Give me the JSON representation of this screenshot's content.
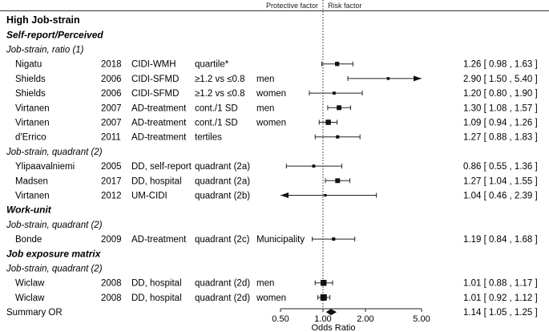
{
  "chart_data": {
    "type": "forest",
    "xlabel": "Odds Ratio",
    "xscale": "log",
    "xlim": [
      0.5,
      5.0
    ],
    "xticks": [
      {
        "value": 0.5,
        "label": "0.50"
      },
      {
        "value": 1.0,
        "label": "1.00"
      },
      {
        "value": 2.0,
        "label": "2.00"
      },
      {
        "value": 5.0,
        "label": "5.00"
      }
    ],
    "reference_line": 1.0,
    "header_left": "Protective factor",
    "header_right": "Risk factor",
    "rows": [
      {
        "kind": "title",
        "label": "High Job-strain"
      },
      {
        "kind": "section",
        "label": "Self-report/Perceived"
      },
      {
        "kind": "subsection",
        "label": "Job-strain, ratio (1)"
      },
      {
        "kind": "study",
        "author": "Nigatu",
        "year": "2018",
        "measure": "CIDI-WMH",
        "exposure": "quartile*",
        "group": "",
        "or": 1.26,
        "lo": 0.98,
        "hi": 1.63,
        "ci_text": "1.26 [ 0.98 , 1.63 ]",
        "weight": 0.55
      },
      {
        "kind": "study",
        "author": "Shields",
        "year": "2006",
        "measure": "CIDI-SFMD",
        "exposure": "≥1.2 vs ≤0.8",
        "group": "men",
        "or": 2.9,
        "lo": 1.5,
        "hi": 5.4,
        "ci_text": "2.90 [ 1.50 , 5.40 ]",
        "weight": 0.25
      },
      {
        "kind": "study",
        "author": "Shields",
        "year": "2006",
        "measure": "CIDI-SFMD",
        "exposure": "≥1.2 vs ≤0.8",
        "group": "women",
        "or": 1.2,
        "lo": 0.8,
        "hi": 1.9,
        "ci_text": "1.20 [ 0.80 , 1.90 ]",
        "weight": 0.3
      },
      {
        "kind": "study",
        "author": "Virtanen",
        "year": "2007",
        "measure": "AD-treatment",
        "exposure": "cont./1 SD",
        "group": "men",
        "or": 1.3,
        "lo": 1.08,
        "hi": 1.57,
        "ci_text": "1.30 [ 1.08 , 1.57 ]",
        "weight": 0.65
      },
      {
        "kind": "study",
        "author": "Virtanen",
        "year": "2007",
        "measure": "AD-treatment",
        "exposure": "cont./1 SD",
        "group": "women",
        "or": 1.09,
        "lo": 0.94,
        "hi": 1.26,
        "ci_text": "1.09 [ 0.94 , 1.26 ]",
        "weight": 0.75
      },
      {
        "kind": "study",
        "author": "d'Errico",
        "year": "2011",
        "measure": "AD-treatment",
        "exposure": "tertiles",
        "group": "",
        "or": 1.27,
        "lo": 0.88,
        "hi": 1.83,
        "ci_text": "1.27 [ 0.88 , 1.83 ]",
        "weight": 0.35
      },
      {
        "kind": "subsection",
        "label": "Job-strain, quadrant  (2)"
      },
      {
        "kind": "study",
        "author": "Ylipaavalniemi",
        "year": "2005",
        "measure": "DD, self-report",
        "exposure": "quadrant (2a)",
        "group": "",
        "or": 0.86,
        "lo": 0.55,
        "hi": 1.36,
        "ci_text": "0.86 [ 0.55 , 1.36 ]",
        "weight": 0.3
      },
      {
        "kind": "study",
        "author": "Madsen",
        "year": "2017",
        "measure": "DD, hospital",
        "exposure": "quadrant (2a)",
        "group": "",
        "or": 1.27,
        "lo": 1.04,
        "hi": 1.55,
        "ci_text": "1.27 [ 1.04 , 1.55 ]",
        "weight": 0.65
      },
      {
        "kind": "study",
        "author": "Virtanen",
        "year": "2012",
        "measure": "UM-CIDI",
        "exposure": "quadrant (2b)",
        "group": "",
        "or": 1.04,
        "lo": 0.46,
        "hi": 2.39,
        "ci_text": "1.04 [ 0.46 , 2.39 ]",
        "weight": 0.2
      },
      {
        "kind": "section",
        "label": "Work-unit"
      },
      {
        "kind": "subsection",
        "label": "Job-strain, quadrant  (2)"
      },
      {
        "kind": "study",
        "author": "Bonde",
        "year": "2009",
        "measure": "AD-treatment",
        "exposure": "quadrant (2c)",
        "group": "Municipality",
        "or": 1.19,
        "lo": 0.84,
        "hi": 1.68,
        "ci_text": "1.19 [ 0.84 , 1.68 ]",
        "weight": 0.35
      },
      {
        "kind": "section",
        "label": "Job exposure matrix"
      },
      {
        "kind": "subsection",
        "label": "Job-strain, quadrant  (2)"
      },
      {
        "kind": "study",
        "author": "Wiclaw",
        "year": "2008",
        "measure": "DD, hospital",
        "exposure": "quadrant (2d)",
        "group": "men",
        "or": 1.01,
        "lo": 0.88,
        "hi": 1.17,
        "ci_text": "1.01 [ 0.88 , 1.17 ]",
        "weight": 0.9
      },
      {
        "kind": "study",
        "author": "Wiclaw",
        "year": "2008",
        "measure": "DD, hospital",
        "exposure": "quadrant (2d)",
        "group": "women",
        "or": 1.01,
        "lo": 0.92,
        "hi": 1.12,
        "ci_text": "1.01 [ 0.92 , 1.12 ]",
        "weight": 1.0
      },
      {
        "kind": "summary",
        "author": "Summary OR",
        "or": 1.14,
        "lo": 1.05,
        "hi": 1.25,
        "ci_text": "1.14 [ 1.05 , 1.25 ]"
      }
    ]
  }
}
